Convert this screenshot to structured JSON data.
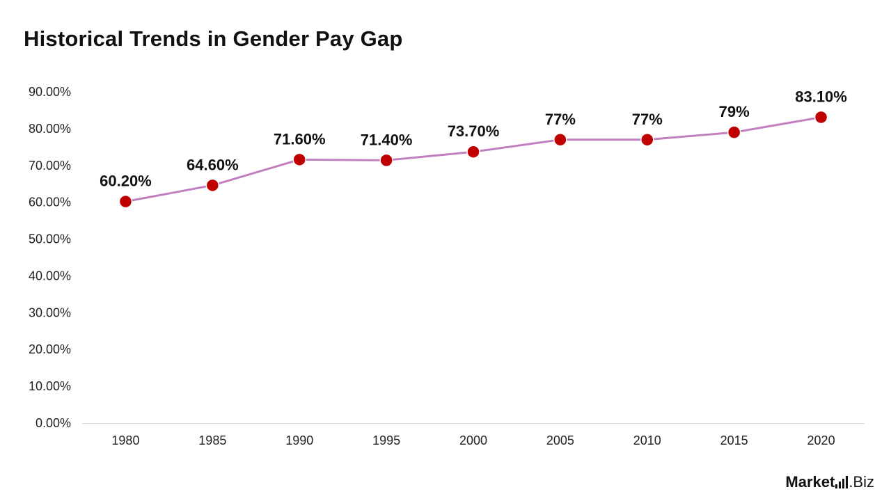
{
  "title": "Historical Trends in Gender Pay Gap",
  "brand": {
    "part1": "Market",
    "part2": ".Biz"
  },
  "colors": {
    "line": "#c27fc0",
    "marker": "#c00000",
    "axis": "#d9d9d9",
    "text": "#111111"
  },
  "chart_data": {
    "type": "line",
    "title": "Historical Trends in Gender Pay Gap",
    "xlabel": "",
    "ylabel": "",
    "categories": [
      "1980",
      "1985",
      "1990",
      "1995",
      "2000",
      "2005",
      "2010",
      "2015",
      "2020"
    ],
    "values": [
      60.2,
      64.6,
      71.6,
      71.4,
      73.7,
      77,
      77,
      79,
      83.1
    ],
    "data_labels": [
      "60.20%",
      "64.60%",
      "71.60%",
      "71.40%",
      "73.70%",
      "77%",
      "77%",
      "79%",
      "83.10%"
    ],
    "ylim": [
      0,
      90
    ],
    "yticks": [
      "0.00%",
      "10.00%",
      "20.00%",
      "30.00%",
      "40.00%",
      "50.00%",
      "60.00%",
      "70.00%",
      "80.00%",
      "90.00%"
    ],
    "grid": false,
    "legend": "none"
  }
}
